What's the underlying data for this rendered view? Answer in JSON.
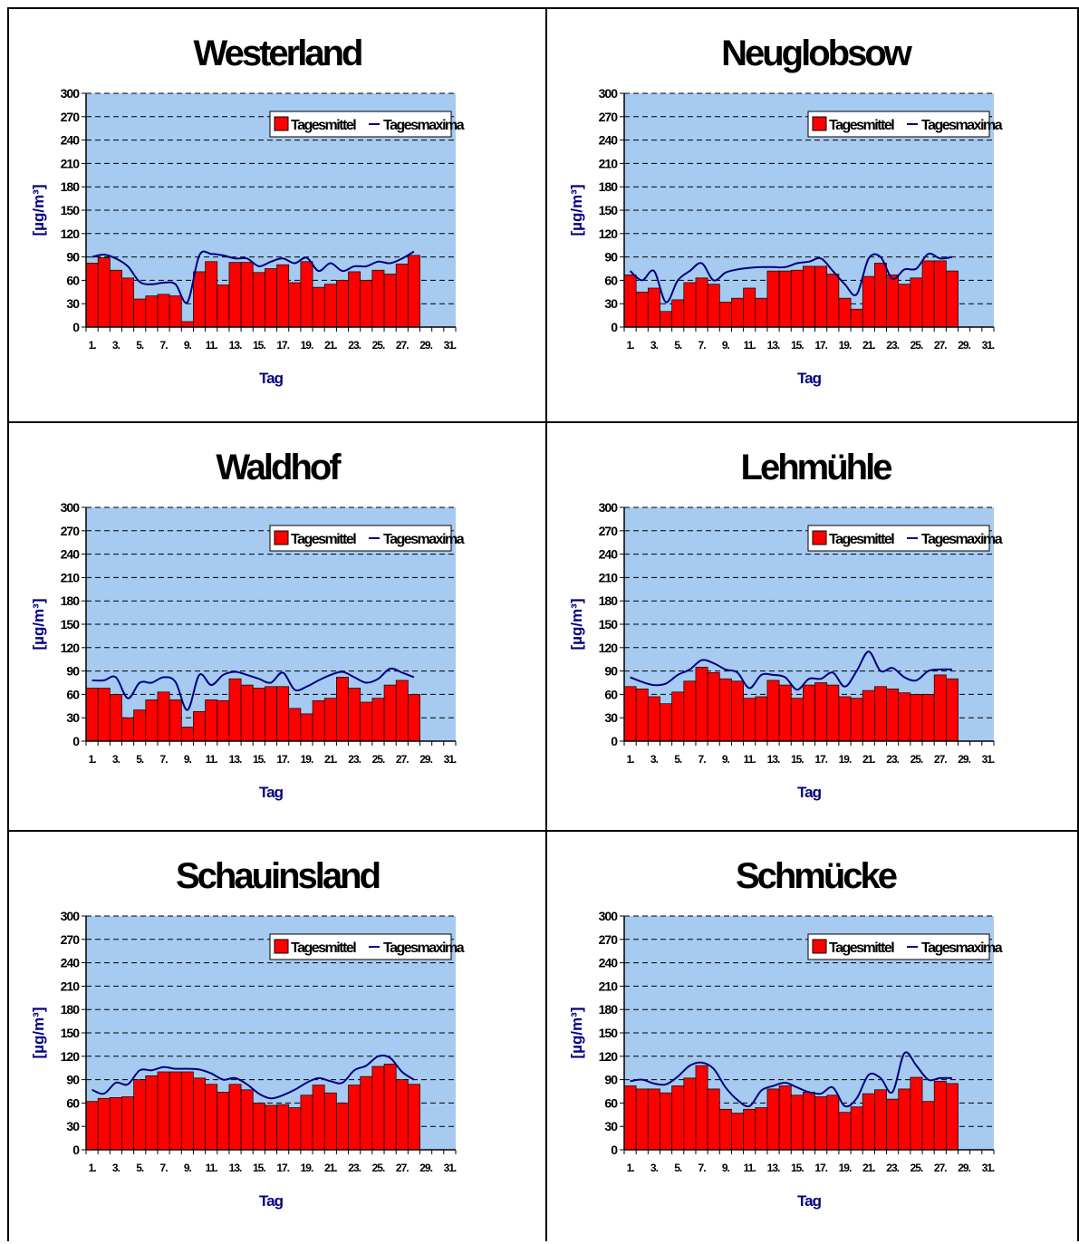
{
  "common": {
    "y_label": "[µg/m³]",
    "x_label": "Tag",
    "legend": {
      "bars": "Tagesmittel",
      "line": "Tagesmaxima"
    },
    "y_ticks": [
      "0",
      "30",
      "60",
      "90",
      "120",
      "150",
      "180",
      "210",
      "240",
      "270",
      "300"
    ],
    "x_ticks": [
      "1.",
      "3.",
      "5.",
      "7.",
      "9.",
      "11.",
      "13.",
      "15.",
      "17.",
      "19.",
      "21.",
      "23.",
      "25.",
      "27.",
      "29.",
      "31."
    ],
    "colors": {
      "plot_bg": "#a6caf0",
      "bar": "#ff0000",
      "bar_edge": "#000000",
      "line": "#000080",
      "axis_title": "#000080",
      "grid": "#000000"
    }
  },
  "chart_data": [
    {
      "type": "bar",
      "title": "Westerland",
      "xlabel": "Tag",
      "ylabel": "[µg/m³]",
      "ylim": [
        0,
        300
      ],
      "grid": true,
      "legend": "top-right",
      "x": [
        1,
        2,
        3,
        4,
        5,
        6,
        7,
        8,
        9,
        10,
        11,
        12,
        13,
        14,
        15,
        16,
        17,
        18,
        19,
        20,
        21,
        22,
        23,
        24,
        25,
        26,
        27,
        28
      ],
      "series": [
        {
          "name": "Tagesmittel",
          "type": "bar",
          "values": [
            82,
            89,
            73,
            63,
            36,
            40,
            42,
            40,
            7,
            71,
            84,
            54,
            83,
            83,
            70,
            75,
            80,
            57,
            84,
            51,
            55,
            60,
            71,
            60,
            73,
            68,
            81,
            92
          ]
        },
        {
          "name": "Tagesmaxima",
          "type": "line",
          "values": [
            90,
            93,
            88,
            78,
            58,
            55,
            57,
            55,
            32,
            92,
            94,
            92,
            88,
            88,
            78,
            84,
            88,
            82,
            89,
            72,
            82,
            72,
            78,
            78,
            84,
            82,
            88,
            97
          ]
        }
      ]
    },
    {
      "type": "bar",
      "title": "Neuglobsow",
      "xlabel": "Tag",
      "ylabel": "[µg/m³]",
      "ylim": [
        0,
        300
      ],
      "grid": true,
      "legend": "top-right",
      "x": [
        1,
        2,
        3,
        4,
        5,
        6,
        7,
        8,
        9,
        10,
        11,
        12,
        13,
        14,
        15,
        16,
        17,
        18,
        19,
        20,
        21,
        22,
        23,
        24,
        25,
        26,
        27,
        28
      ],
      "series": [
        {
          "name": "Tagesmittel",
          "type": "bar",
          "values": [
            67,
            45,
            50,
            20,
            35,
            57,
            63,
            55,
            32,
            37,
            50,
            37,
            72,
            72,
            73,
            78,
            78,
            68,
            37,
            23,
            65,
            82,
            67,
            55,
            63,
            85,
            85,
            72
          ]
        },
        {
          "name": "Tagesmaxima",
          "type": "line",
          "values": [
            72,
            60,
            72,
            32,
            60,
            72,
            82,
            60,
            70,
            74,
            76,
            77,
            77,
            77,
            82,
            84,
            88,
            72,
            55,
            42,
            88,
            90,
            62,
            74,
            75,
            94,
            88,
            90
          ]
        }
      ]
    },
    {
      "type": "bar",
      "title": "Waldhof",
      "xlabel": "Tag",
      "ylabel": "[µg/m³]",
      "ylim": [
        0,
        300
      ],
      "grid": true,
      "legend": "top-right",
      "x": [
        1,
        2,
        3,
        4,
        5,
        6,
        7,
        8,
        9,
        10,
        11,
        12,
        13,
        14,
        15,
        16,
        17,
        18,
        19,
        20,
        21,
        22,
        23,
        24,
        25,
        26,
        27,
        28
      ],
      "series": [
        {
          "name": "Tagesmittel",
          "type": "bar",
          "values": [
            68,
            68,
            60,
            30,
            40,
            53,
            63,
            53,
            18,
            38,
            53,
            52,
            80,
            72,
            68,
            70,
            70,
            42,
            35,
            52,
            55,
            82,
            68,
            50,
            55,
            72,
            78,
            60
          ]
        },
        {
          "name": "Tagesmaxima",
          "type": "line",
          "values": [
            78,
            78,
            82,
            55,
            75,
            75,
            82,
            76,
            40,
            85,
            72,
            85,
            89,
            85,
            80,
            75,
            88,
            66,
            70,
            78,
            85,
            89,
            82,
            75,
            80,
            93,
            88,
            82
          ]
        }
      ]
    },
    {
      "type": "bar",
      "title": "Lehmühle",
      "xlabel": "Tag",
      "ylabel": "[µg/m³]",
      "ylim": [
        0,
        300
      ],
      "grid": true,
      "legend": "top-right",
      "x": [
        1,
        2,
        3,
        4,
        5,
        6,
        7,
        8,
        9,
        10,
        11,
        12,
        13,
        14,
        15,
        16,
        17,
        18,
        19,
        20,
        21,
        22,
        23,
        24,
        25,
        26,
        27,
        28
      ],
      "series": [
        {
          "name": "Tagesmittel",
          "type": "bar",
          "values": [
            70,
            67,
            57,
            48,
            63,
            77,
            95,
            88,
            80,
            77,
            55,
            57,
            78,
            72,
            55,
            72,
            75,
            72,
            57,
            55,
            65,
            70,
            67,
            62,
            60,
            60,
            85,
            80
          ]
        },
        {
          "name": "Tagesmaxima",
          "type": "line",
          "values": [
            82,
            76,
            72,
            74,
            85,
            92,
            104,
            100,
            92,
            88,
            68,
            85,
            85,
            82,
            66,
            80,
            80,
            88,
            70,
            90,
            115,
            90,
            94,
            82,
            78,
            90,
            92,
            92
          ]
        }
      ]
    },
    {
      "type": "bar",
      "title": "Schauinsland",
      "xlabel": "Tag",
      "ylabel": "[µg/m³]",
      "ylim": [
        0,
        300
      ],
      "grid": true,
      "legend": "top-right",
      "x": [
        1,
        2,
        3,
        4,
        5,
        6,
        7,
        8,
        9,
        10,
        11,
        12,
        13,
        14,
        15,
        16,
        17,
        18,
        19,
        20,
        21,
        22,
        23,
        24,
        25,
        26,
        27,
        28
      ],
      "series": [
        {
          "name": "Tagesmittel",
          "type": "bar",
          "values": [
            62,
            66,
            67,
            68,
            90,
            95,
            100,
            100,
            100,
            92,
            84,
            74,
            84,
            77,
            60,
            57,
            58,
            54,
            70,
            83,
            73,
            60,
            83,
            94,
            107,
            110,
            90,
            84
          ]
        },
        {
          "name": "Tagesmaxima",
          "type": "line",
          "values": [
            77,
            72,
            86,
            84,
            102,
            102,
            106,
            104,
            104,
            103,
            98,
            90,
            92,
            84,
            72,
            66,
            70,
            77,
            86,
            92,
            88,
            86,
            102,
            108,
            120,
            118,
            100,
            90
          ]
        }
      ]
    },
    {
      "type": "bar",
      "title": "Schmücke",
      "xlabel": "Tag",
      "ylabel": "[µg/m³]",
      "ylim": [
        0,
        300
      ],
      "grid": true,
      "legend": "top-right",
      "x": [
        1,
        2,
        3,
        4,
        5,
        6,
        7,
        8,
        9,
        10,
        11,
        12,
        13,
        14,
        15,
        16,
        17,
        18,
        19,
        20,
        21,
        22,
        23,
        24,
        25,
        26,
        27,
        28
      ],
      "series": [
        {
          "name": "Tagesmittel",
          "type": "bar",
          "values": [
            82,
            78,
            78,
            73,
            82,
            92,
            108,
            78,
            52,
            47,
            52,
            54,
            78,
            82,
            70,
            74,
            68,
            70,
            48,
            55,
            72,
            77,
            65,
            78,
            93,
            62,
            88,
            85
          ]
        },
        {
          "name": "Tagesmaxima",
          "type": "line",
          "values": [
            88,
            90,
            85,
            84,
            94,
            108,
            112,
            104,
            80,
            64,
            56,
            76,
            82,
            86,
            80,
            74,
            72,
            80,
            56,
            66,
            96,
            92,
            74,
            124,
            108,
            90,
            92,
            92
          ]
        }
      ]
    }
  ]
}
